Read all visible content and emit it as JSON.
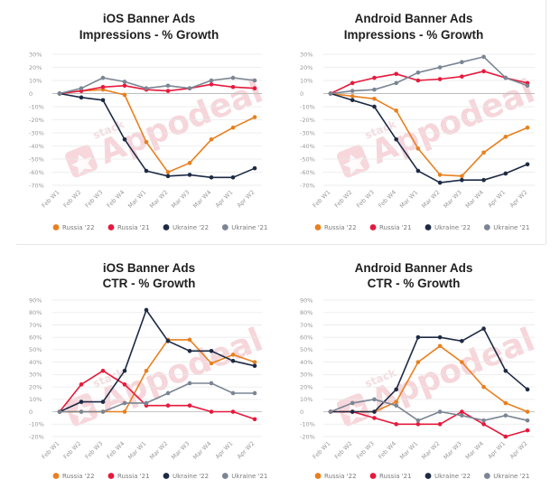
{
  "colors": {
    "russia22": "#e8801f",
    "russia21": "#e6193c",
    "ukraine22": "#1d2a44",
    "ukraine21": "#7b8593"
  },
  "watermark": {
    "small": "stack",
    "brand": "Appodeal"
  },
  "chart_data": [
    {
      "type": "line",
      "title_line1": "iOS Banner Ads",
      "title_line2": "Impressions - % Growth",
      "categories": [
        "Feb W1",
        "Feb W2",
        "Feb W3",
        "Feb W4",
        "Mar W1",
        "Mar W2",
        "Mar W3",
        "Mar W4",
        "Apr W1",
        "Apr W2"
      ],
      "yticks": [
        "30%",
        "20%",
        "10%",
        "0",
        "-10%",
        "-20%",
        "-30%",
        "-40%",
        "-50%",
        "-60%",
        "-70%"
      ],
      "ylim": [
        -70,
        30
      ],
      "series": [
        {
          "name": "Russia '22",
          "color": "#e8801f",
          "values": [
            0,
            2,
            3,
            -1,
            -37,
            -60,
            -53,
            -35,
            -26,
            -18
          ]
        },
        {
          "name": "Russia '21",
          "color": "#e6193c",
          "values": [
            0,
            2,
            5,
            6,
            3,
            2,
            4,
            7,
            5,
            4
          ]
        },
        {
          "name": "Ukraine '22",
          "color": "#1d2a44",
          "values": [
            0,
            -3,
            -5,
            -35,
            -59,
            -63,
            -62,
            -64,
            -64,
            -57
          ]
        },
        {
          "name": "Ukraine '21",
          "color": "#7b8593",
          "values": [
            0,
            4,
            12,
            9,
            4,
            6,
            4,
            10,
            12,
            10
          ]
        }
      ]
    },
    {
      "type": "line",
      "title_line1": "Android Banner Ads",
      "title_line2": "Impressions - % Growth",
      "categories": [
        "Feb W1",
        "Feb W2",
        "Feb W3",
        "Feb W4",
        "Mar W1",
        "Mar W2",
        "Mar W3",
        "Mar W4",
        "Apr W1",
        "Apr W2"
      ],
      "yticks": [
        "30%",
        "20%",
        "10%",
        "0",
        "-10%",
        "-20%",
        "-30%",
        "-40%",
        "-50%",
        "-60%",
        "-70%"
      ],
      "ylim": [
        -70,
        30
      ],
      "series": [
        {
          "name": "Russia '22",
          "color": "#e8801f",
          "values": [
            0,
            -2,
            -4,
            -13,
            -42,
            -62,
            -63,
            -45,
            -33,
            -26
          ]
        },
        {
          "name": "Russia '21",
          "color": "#e6193c",
          "values": [
            0,
            8,
            12,
            15,
            10,
            11,
            13,
            17,
            12,
            8
          ]
        },
        {
          "name": "Ukraine '22",
          "color": "#1d2a44",
          "values": [
            0,
            -5,
            -10,
            -35,
            -59,
            -68,
            -66,
            -66,
            -61,
            -54
          ]
        },
        {
          "name": "Ukraine '21",
          "color": "#7b8593",
          "values": [
            0,
            2,
            3,
            8,
            16,
            20,
            24,
            28,
            12,
            6
          ]
        }
      ]
    },
    {
      "type": "line",
      "title_line1": "iOS Banner Ads",
      "title_line2": "CTR - % Growth",
      "categories": [
        "Feb W1",
        "Feb W2",
        "Feb W3",
        "Feb W4",
        "Mar W1",
        "Mar W2",
        "Mar W3",
        "Mar W4",
        "Apr W1",
        "Apr W2"
      ],
      "yticks": [
        "90%",
        "80%",
        "70%",
        "60%",
        "50%",
        "40%",
        "30%",
        "20%",
        "10%",
        "0",
        "-10%",
        "-20%"
      ],
      "ylim": [
        -20,
        90
      ],
      "series": [
        {
          "name": "Russia '22",
          "color": "#e8801f",
          "values": [
            0,
            0,
            0,
            0,
            33,
            58,
            58,
            39,
            46,
            40
          ]
        },
        {
          "name": "Russia '21",
          "color": "#e6193c",
          "values": [
            0,
            22,
            33,
            22,
            5,
            5,
            5,
            0,
            0,
            -6
          ]
        },
        {
          "name": "Ukraine '22",
          "color": "#1d2a44",
          "values": [
            0,
            8,
            8,
            33,
            82,
            57,
            49,
            49,
            41,
            37
          ]
        },
        {
          "name": "Ukraine '21",
          "color": "#7b8593",
          "values": [
            0,
            0,
            0,
            7,
            7,
            15,
            23,
            23,
            15,
            15
          ]
        }
      ]
    },
    {
      "type": "line",
      "title_line1": "Android Banner Ads",
      "title_line2": "CTR - % Growth",
      "categories": [
        "Feb W1",
        "Feb W2",
        "Feb W3",
        "Feb W4",
        "Mar W1",
        "Mar W2",
        "Mar W3",
        "Mar W4",
        "Apr W1",
        "Apr W2"
      ],
      "yticks": [
        "90%",
        "80%",
        "70%",
        "60%",
        "50%",
        "40%",
        "30%",
        "20%",
        "10%",
        "0",
        "-10%",
        "-20%"
      ],
      "ylim": [
        -20,
        90
      ],
      "series": [
        {
          "name": "Russia '22",
          "color": "#e8801f",
          "values": [
            0,
            0,
            0,
            8,
            40,
            53,
            40,
            20,
            7,
            0
          ]
        },
        {
          "name": "Russia '21",
          "color": "#e6193c",
          "values": [
            0,
            0,
            -5,
            -10,
            -10,
            -10,
            0,
            -10,
            -20,
            -15
          ]
        },
        {
          "name": "Ukraine '22",
          "color": "#1d2a44",
          "values": [
            0,
            0,
            0,
            18,
            60,
            60,
            57,
            67,
            33,
            18
          ]
        },
        {
          "name": "Ukraine '21",
          "color": "#7b8593",
          "values": [
            0,
            7,
            10,
            5,
            -7,
            0,
            -3,
            -7,
            -3,
            -7
          ]
        }
      ]
    }
  ]
}
